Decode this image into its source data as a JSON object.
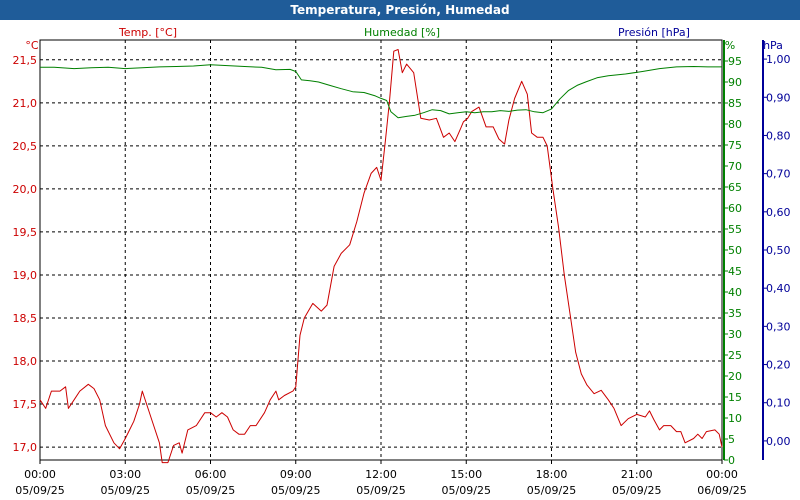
{
  "window": {
    "title": "Temperatura, Presión, Humedad"
  },
  "chart_data": {
    "type": "line",
    "title": "Temperatura, Presión, Humedad",
    "grid": true,
    "x_ticks": [
      {
        "time": "00:00",
        "date": "05/09/25"
      },
      {
        "time": "03:00",
        "date": "05/09/25"
      },
      {
        "time": "06:00",
        "date": "05/09/25"
      },
      {
        "time": "09:00",
        "date": "05/09/25"
      },
      {
        "time": "12:00",
        "date": "05/09/25"
      },
      {
        "time": "15:00",
        "date": "05/09/25"
      },
      {
        "time": "18:00",
        "date": "05/09/25"
      },
      {
        "time": "21:00",
        "date": "05/09/25"
      },
      {
        "time": "00:00",
        "date": "06/09/25"
      }
    ],
    "x_range_hours": [
      0,
      24
    ],
    "axes": {
      "temp": {
        "label": "Temp. [°C]",
        "unit": "°C",
        "color": "#cc0000",
        "range": [
          16.85,
          21.73
        ],
        "ticks": [
          "17,0",
          "17,5",
          "18,0",
          "18,5",
          "19,0",
          "19,5",
          "20,0",
          "20,5",
          "21,0",
          "21,5"
        ],
        "tick_values": [
          17.0,
          17.5,
          18.0,
          18.5,
          19.0,
          19.5,
          20.0,
          20.5,
          21.0,
          21.5
        ]
      },
      "humidity": {
        "label": "Humedad [%]",
        "unit": "%",
        "color": "#008000",
        "range": [
          0,
          100
        ],
        "ticks": [
          "0",
          "5",
          "10",
          "15",
          "20",
          "25",
          "30",
          "35",
          "40",
          "45",
          "50",
          "55",
          "60",
          "65",
          "70",
          "75",
          "80",
          "85",
          "90",
          "95"
        ],
        "tick_values": [
          0,
          5,
          10,
          15,
          20,
          25,
          30,
          35,
          40,
          45,
          50,
          55,
          60,
          65,
          70,
          75,
          80,
          85,
          90,
          95
        ]
      },
      "pressure": {
        "label": "Presión [hPa]",
        "unit": "hPa",
        "color": "#000099",
        "range": [
          -0.05,
          1.05
        ],
        "ticks": [
          "0,00",
          "0,10",
          "0,20",
          "0,30",
          "0,40",
          "0,50",
          "0,60",
          "0,70",
          "0,80",
          "0,90",
          "1,00"
        ],
        "tick_values": [
          0,
          0.1,
          0.2,
          0.3,
          0.4,
          0.5,
          0.6,
          0.7,
          0.8,
          0.9,
          1.0
        ]
      }
    },
    "series": [
      {
        "name": "Temp. [°C]",
        "axis": "temp",
        "color": "#cc0000",
        "points": [
          [
            0,
            17.55
          ],
          [
            0.2,
            17.45
          ],
          [
            0.4,
            17.65
          ],
          [
            0.7,
            17.65
          ],
          [
            0.9,
            17.7
          ],
          [
            1.0,
            17.45
          ],
          [
            1.2,
            17.55
          ],
          [
            1.4,
            17.65
          ],
          [
            1.7,
            17.73
          ],
          [
            1.9,
            17.68
          ],
          [
            2.1,
            17.55
          ],
          [
            2.3,
            17.25
          ],
          [
            2.6,
            17.05
          ],
          [
            2.8,
            16.98
          ],
          [
            3.0,
            17.1
          ],
          [
            3.3,
            17.3
          ],
          [
            3.5,
            17.5
          ],
          [
            3.6,
            17.65
          ],
          [
            3.8,
            17.45
          ],
          [
            4.0,
            17.25
          ],
          [
            4.2,
            17.05
          ],
          [
            4.3,
            16.82
          ],
          [
            4.5,
            16.82
          ],
          [
            4.7,
            17.02
          ],
          [
            4.9,
            17.05
          ],
          [
            5.0,
            16.93
          ],
          [
            5.2,
            17.2
          ],
          [
            5.5,
            17.25
          ],
          [
            5.8,
            17.4
          ],
          [
            6.0,
            17.4
          ],
          [
            6.2,
            17.35
          ],
          [
            6.4,
            17.4
          ],
          [
            6.6,
            17.35
          ],
          [
            6.8,
            17.2
          ],
          [
            7.0,
            17.15
          ],
          [
            7.2,
            17.15
          ],
          [
            7.4,
            17.25
          ],
          [
            7.6,
            17.25
          ],
          [
            7.9,
            17.4
          ],
          [
            8.1,
            17.55
          ],
          [
            8.3,
            17.65
          ],
          [
            8.4,
            17.55
          ],
          [
            8.6,
            17.6
          ],
          [
            8.9,
            17.65
          ],
          [
            9.0,
            17.7
          ],
          [
            9.15,
            18.3
          ],
          [
            9.3,
            18.5
          ],
          [
            9.6,
            18.67
          ],
          [
            9.9,
            18.58
          ],
          [
            10.1,
            18.65
          ],
          [
            10.35,
            19.1
          ],
          [
            10.6,
            19.25
          ],
          [
            10.9,
            19.35
          ],
          [
            11.15,
            19.62
          ],
          [
            11.4,
            19.95
          ],
          [
            11.65,
            20.18
          ],
          [
            11.85,
            20.25
          ],
          [
            12.0,
            20.1
          ],
          [
            12.15,
            20.55
          ],
          [
            12.3,
            21.02
          ],
          [
            12.45,
            21.6
          ],
          [
            12.6,
            21.62
          ],
          [
            12.75,
            21.35
          ],
          [
            12.9,
            21.45
          ],
          [
            13.15,
            21.35
          ],
          [
            13.4,
            20.82
          ],
          [
            13.7,
            20.8
          ],
          [
            13.95,
            20.82
          ],
          [
            14.2,
            20.6
          ],
          [
            14.4,
            20.65
          ],
          [
            14.6,
            20.55
          ],
          [
            14.8,
            20.7
          ],
          [
            14.9,
            20.78
          ],
          [
            15.05,
            20.82
          ],
          [
            15.2,
            20.9
          ],
          [
            15.45,
            20.95
          ],
          [
            15.7,
            20.72
          ],
          [
            15.95,
            20.72
          ],
          [
            16.15,
            20.58
          ],
          [
            16.35,
            20.52
          ],
          [
            16.5,
            20.8
          ],
          [
            16.7,
            21.05
          ],
          [
            16.95,
            21.25
          ],
          [
            17.15,
            21.1
          ],
          [
            17.3,
            20.65
          ],
          [
            17.5,
            20.6
          ],
          [
            17.7,
            20.6
          ],
          [
            17.85,
            20.5
          ],
          [
            18.05,
            20.0
          ],
          [
            18.25,
            19.55
          ],
          [
            18.45,
            19.0
          ],
          [
            18.65,
            18.55
          ],
          [
            18.85,
            18.1
          ],
          [
            19.05,
            17.85
          ],
          [
            19.25,
            17.72
          ],
          [
            19.5,
            17.62
          ],
          [
            19.75,
            17.66
          ],
          [
            20.0,
            17.55
          ],
          [
            20.2,
            17.45
          ],
          [
            20.45,
            17.25
          ],
          [
            20.7,
            17.33
          ],
          [
            21.0,
            17.38
          ],
          [
            21.3,
            17.35
          ],
          [
            21.45,
            17.42
          ],
          [
            21.6,
            17.32
          ],
          [
            21.8,
            17.2
          ],
          [
            21.95,
            17.25
          ],
          [
            22.2,
            17.25
          ],
          [
            22.4,
            17.18
          ],
          [
            22.55,
            17.18
          ],
          [
            22.7,
            17.05
          ],
          [
            23.0,
            17.1
          ],
          [
            23.15,
            17.15
          ],
          [
            23.3,
            17.1
          ],
          [
            23.45,
            17.18
          ],
          [
            23.75,
            17.2
          ],
          [
            23.9,
            17.15
          ],
          [
            24.0,
            17.0
          ]
        ]
      },
      {
        "name": "Humedad [%]",
        "axis": "humidity",
        "color": "#008000",
        "points": [
          [
            0,
            93.5
          ],
          [
            0.5,
            93.5
          ],
          [
            1.2,
            93.2
          ],
          [
            1.8,
            93.4
          ],
          [
            2.4,
            93.5
          ],
          [
            3.0,
            93.2
          ],
          [
            3.6,
            93.4
          ],
          [
            4.2,
            93.6
          ],
          [
            4.8,
            93.7
          ],
          [
            5.4,
            93.8
          ],
          [
            6.0,
            94.1
          ],
          [
            6.6,
            93.9
          ],
          [
            7.2,
            93.7
          ],
          [
            7.8,
            93.5
          ],
          [
            8.3,
            92.9
          ],
          [
            8.8,
            93.0
          ],
          [
            9.0,
            92.5
          ],
          [
            9.2,
            90.5
          ],
          [
            9.5,
            90.3
          ],
          [
            9.8,
            90.0
          ],
          [
            10.2,
            89.2
          ],
          [
            10.6,
            88.4
          ],
          [
            11.0,
            87.7
          ],
          [
            11.4,
            87.5
          ],
          [
            11.8,
            86.7
          ],
          [
            12.0,
            86.1
          ],
          [
            12.2,
            85.6
          ],
          [
            12.35,
            82.9
          ],
          [
            12.6,
            81.5
          ],
          [
            12.9,
            81.8
          ],
          [
            13.2,
            82.1
          ],
          [
            13.5,
            82.7
          ],
          [
            13.8,
            83.4
          ],
          [
            14.1,
            83.2
          ],
          [
            14.4,
            82.4
          ],
          [
            14.7,
            82.7
          ],
          [
            15.0,
            82.9
          ],
          [
            15.3,
            82.7
          ],
          [
            15.6,
            82.9
          ],
          [
            15.9,
            82.9
          ],
          [
            16.2,
            83.2
          ],
          [
            16.5,
            83.0
          ],
          [
            16.8,
            83.3
          ],
          [
            17.1,
            83.4
          ],
          [
            17.4,
            82.9
          ],
          [
            17.7,
            82.7
          ],
          [
            18.0,
            83.6
          ],
          [
            18.3,
            86.0
          ],
          [
            18.6,
            88.0
          ],
          [
            18.9,
            89.2
          ],
          [
            19.2,
            90.0
          ],
          [
            19.6,
            91.0
          ],
          [
            20.0,
            91.5
          ],
          [
            20.6,
            91.9
          ],
          [
            21.2,
            92.5
          ],
          [
            21.8,
            93.2
          ],
          [
            22.4,
            93.6
          ],
          [
            23.0,
            93.7
          ],
          [
            23.5,
            93.6
          ],
          [
            24.0,
            93.6
          ]
        ]
      }
    ]
  }
}
